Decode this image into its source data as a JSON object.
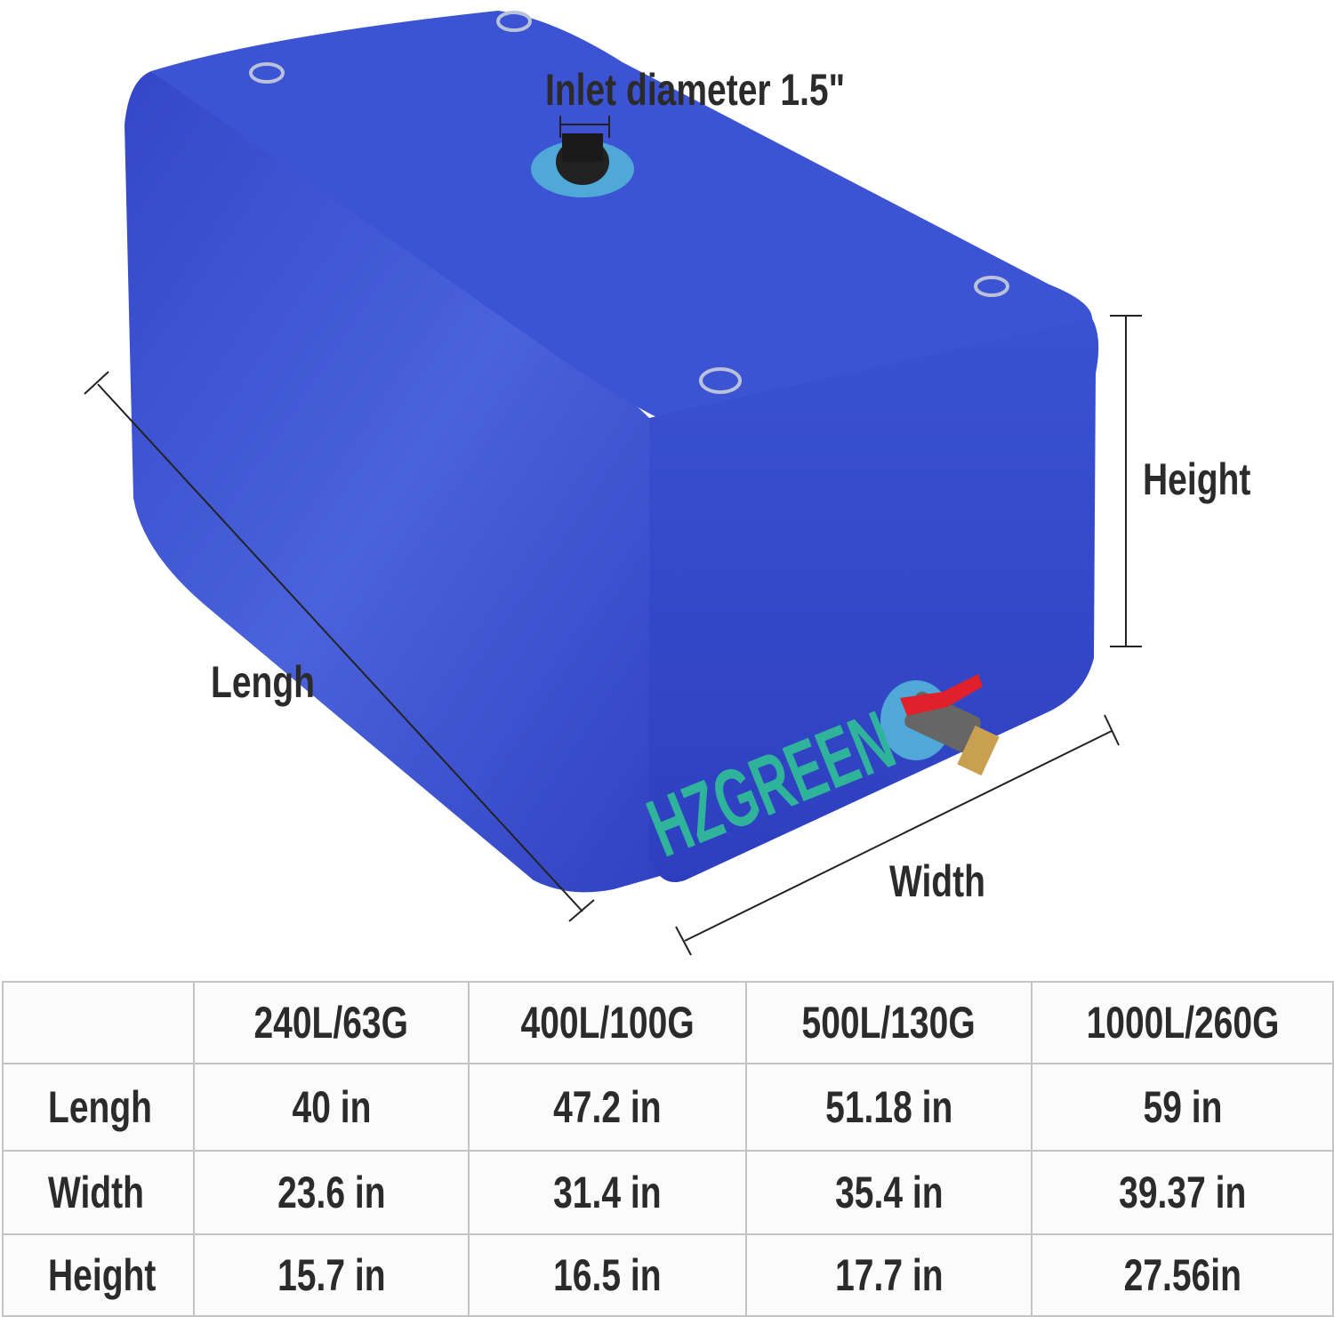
{
  "product": {
    "brand": "HZGREEN",
    "colors": {
      "tank": "#3a4fd0",
      "brand_text": "#2fb39a",
      "valve": "#e0202a"
    }
  },
  "annotations": {
    "inlet": "Inlet diameter 1.5\"",
    "length": "Lengh",
    "width": "Width",
    "height": "Height"
  },
  "size_table": {
    "columns": [
      "",
      "240L/63G",
      "400L/100G",
      "500L/130G",
      "1000L/260G"
    ],
    "rows": [
      {
        "label": "Lengh",
        "values": [
          "40 in",
          "47.2 in",
          "51.18 in",
          "59 in"
        ]
      },
      {
        "label": "Width",
        "values": [
          "23.6 in",
          "31.4 in",
          "35.4 in",
          "39.37 in"
        ]
      },
      {
        "label": "Height",
        "values": [
          "15.7 in",
          "16.5 in",
          "17.7 in",
          "27.56in"
        ]
      }
    ]
  }
}
